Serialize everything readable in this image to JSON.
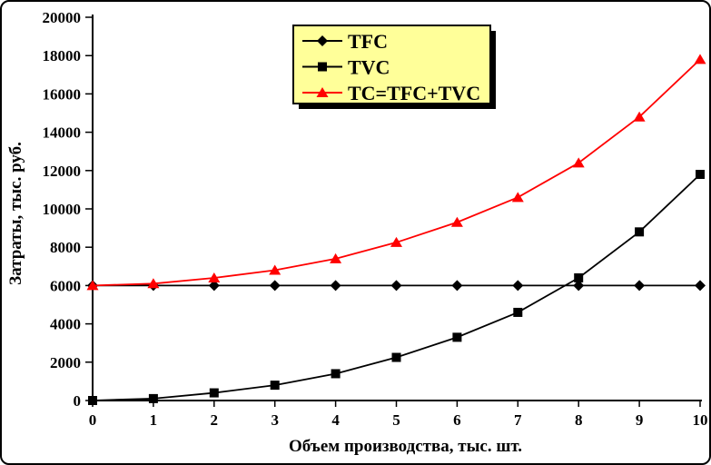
{
  "chart_data": {
    "type": "line",
    "title": "",
    "xlabel": "Объем производства, тыс. шт.",
    "ylabel": "Затраты, тыс. руб.",
    "x": [
      0,
      1,
      2,
      3,
      4,
      5,
      6,
      7,
      8,
      9,
      10
    ],
    "series": [
      {
        "key": "tfc",
        "name": "TFC",
        "color": "#000000",
        "marker": "diamond",
        "values": [
          6000,
          6000,
          6000,
          6000,
          6000,
          6000,
          6000,
          6000,
          6000,
          6000,
          6000
        ]
      },
      {
        "key": "tvc",
        "name": "TVC",
        "color": "#000000",
        "marker": "square",
        "values": [
          0,
          100,
          400,
          800,
          1400,
          2250,
          3300,
          4600,
          6400,
          8800,
          11800
        ]
      },
      {
        "key": "tc",
        "name": "TC=TFC+TVC",
        "color": "#FF0000",
        "marker": "triangle",
        "values": [
          6000,
          6100,
          6400,
          6800,
          7400,
          8250,
          9300,
          10600,
          12400,
          14800,
          17800
        ]
      }
    ],
    "xlim": [
      0,
      10
    ],
    "ylim": [
      0,
      20000
    ],
    "x_tick_step": 1,
    "y_tick_step": 2000,
    "x_ticks": [
      "0",
      "1",
      "2",
      "3",
      "4",
      "5",
      "6",
      "7",
      "8",
      "9",
      "10"
    ],
    "y_ticks": [
      "0",
      "2000",
      "4000",
      "6000",
      "8000",
      "10000",
      "12000",
      "14000",
      "16000",
      "18000",
      "20000"
    ],
    "grid": false,
    "legend": {
      "position": "top-center",
      "bg": "#FFFF99",
      "border": "#000000",
      "shadow": "#000000"
    },
    "colors": {
      "axis": "#000000",
      "background": "#FFFFFF",
      "tc_line": "#FF0000",
      "tfc_line": "#000000",
      "tvc_line": "#000000"
    }
  }
}
